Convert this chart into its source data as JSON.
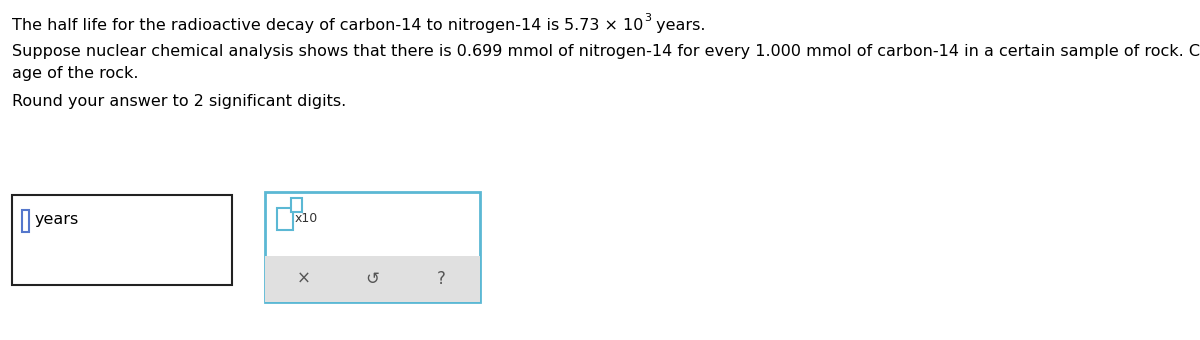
{
  "line1_prefix": "The half life for the radioactive decay of carbon-14 to nitrogen-14 is ",
  "line1_math": "5.73 × 10",
  "line1_exp": "3",
  "line1_end": " years.",
  "line2": "Suppose nuclear chemical analysis shows that there is 0.699 mmol of nitrogen-14 for every 1.000 mmol of carbon-14 in a certain sample of rock. Calculate the",
  "line3": "age of the rock.",
  "line4": "Round your answer to 2 significant digits.",
  "box1_label": "years",
  "box2_label": "x10",
  "icon_x": "×",
  "icon_undo": "↺",
  "icon_q": "?",
  "bg_color": "#ffffff",
  "text_color": "#000000",
  "box1_border_color": "#222222",
  "box2_border_color": "#5bb8d4",
  "cursor1_color": "#5577cc",
  "cursor2_color": "#5bb8d4",
  "toolbar_bg": "#e0e0e0",
  "font_size": 11.5,
  "sup_font_size": 8,
  "icon_font_size": 12,
  "label_font_size": 9,
  "fig_w": 12.0,
  "fig_h": 3.4,
  "dpi": 100
}
